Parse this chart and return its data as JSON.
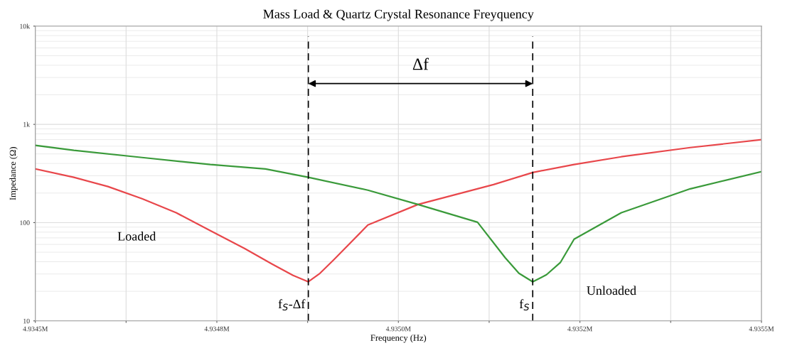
{
  "chart_data": {
    "type": "line",
    "title": "Mass Load & Quartz Crystal Resonance Freyquency",
    "xlabel": "Frequency (Hz)",
    "ylabel": "Impedance (Ω)",
    "log": "y",
    "grid": true,
    "legend": false,
    "line_style": "solid",
    "marker": "none",
    "xlim": [
      4.9345,
      4.9355
    ],
    "xticks": [
      {
        "value": 4.9345,
        "label": "4.9345M"
      },
      {
        "value": 4.934625,
        "label": null
      },
      {
        "value": 4.93475,
        "label": "4.9348M"
      },
      {
        "value": 4.934875,
        "label": null
      },
      {
        "value": 4.935,
        "label": "4.9350M"
      },
      {
        "value": 4.935125,
        "label": null
      },
      {
        "value": 4.93525,
        "label": "4.9352M"
      },
      {
        "value": 4.935375,
        "label": null
      },
      {
        "value": 4.9355,
        "label": "4.9355M"
      }
    ],
    "ylim": [
      10,
      10000
    ],
    "yticks": [
      10,
      100,
      {
        "value": 1000,
        "label": "1k"
      },
      {
        "value": 10000,
        "label": "10k"
      }
    ],
    "series": [
      {
        "name": "Loaded",
        "color": "#e8474b",
        "x": [
          4.9345,
          4.934553,
          4.9346,
          4.934647,
          4.934694,
          4.934741,
          4.934788,
          4.934826,
          4.934855,
          4.934876,
          4.934892,
          4.934911,
          4.934958,
          4.935027,
          4.935131,
          4.935185,
          4.935242,
          4.935307,
          4.935402,
          4.9355
        ],
        "values": [
          352,
          289,
          233,
          175,
          126,
          82.8,
          54.6,
          37.9,
          29.0,
          25.0,
          30.5,
          41.9,
          94.6,
          153,
          244,
          324,
          390,
          468,
          581,
          698
        ]
      },
      {
        "name": "Unloaded",
        "color": "#3a9a3a",
        "x": [
          4.9345,
          4.934553,
          4.934647,
          4.934741,
          4.934817,
          4.934876,
          4.934958,
          4.935027,
          4.935109,
          4.935147,
          4.935166,
          4.935185,
          4.935204,
          4.935223,
          4.935242,
          4.935307,
          4.935402,
          4.9355
        ],
        "values": [
          611,
          544,
          460,
          390,
          352,
          289,
          214,
          153,
          101,
          44.0,
          30.5,
          25.0,
          29.5,
          39.2,
          67.9,
          126,
          221,
          330
        ]
      }
    ],
    "ref_lines": [
      {
        "axis": "x",
        "value": 4.934876,
        "label": "f$_{S}$-Δf",
        "color": "#000000",
        "line_style": "dashed"
      },
      {
        "axis": "x",
        "value": 4.935185,
        "label": "f$_{S}$",
        "color": "#000000",
        "line_style": "dashed"
      }
    ],
    "annotations": [
      "Δf"
    ]
  }
}
